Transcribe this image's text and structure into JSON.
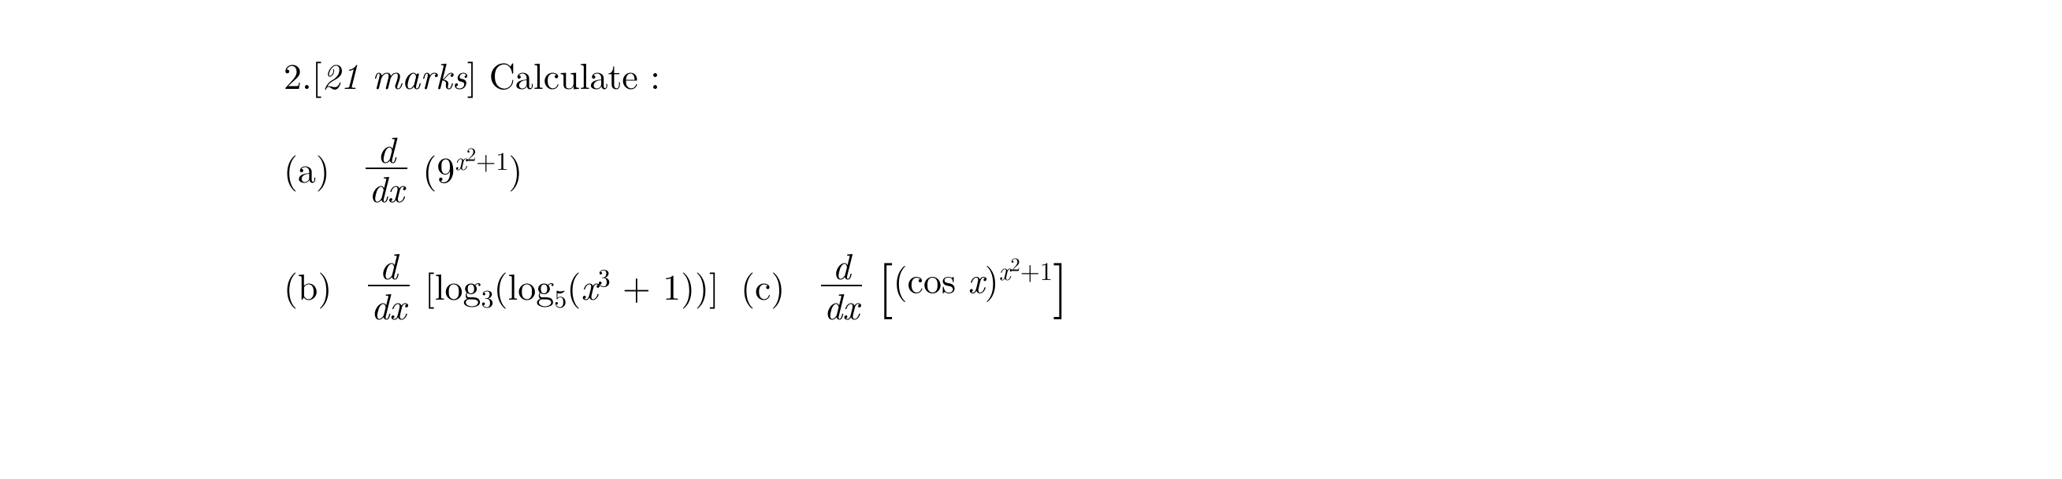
{
  "question": {
    "number": "2.",
    "marks_open": "[",
    "marks_text": "21 marks",
    "marks_close": "]",
    "prompt": " Calculate :"
  },
  "parts": {
    "a": {
      "label": "(a)",
      "deriv_num": "d",
      "deriv_den_d": "d",
      "deriv_den_var": "x",
      "base": "(9",
      "exp_x": "x",
      "exp_sq": "2",
      "exp_plus1": "+1",
      "close": ")"
    },
    "b": {
      "label": "(b)",
      "deriv_num": "d",
      "deriv_den_d": "d",
      "deriv_den_var": "x",
      "log1": "[log",
      "log1_base": "3",
      "log2": "(log",
      "log2_base": "5",
      "arg_open": "(",
      "arg_x": "x",
      "arg_cube": "3",
      "arg_rest": " + 1))]"
    },
    "c": {
      "label": "(c)",
      "deriv_num": "d",
      "deriv_den_d": "d",
      "deriv_den_var": "x",
      "cos_open": "(cos ",
      "cos_x": "x",
      "cos_close": ")",
      "exp_x": "x",
      "exp_sq": "2",
      "exp_plus1": "+1"
    }
  }
}
